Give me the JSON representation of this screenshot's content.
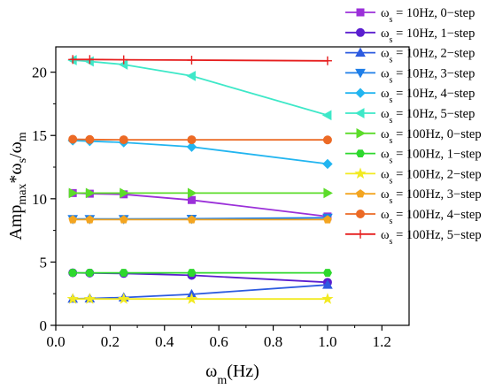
{
  "chart_data": {
    "type": "line",
    "title": "",
    "xlabel": {
      "base": "ω",
      "sub": "m",
      "tail": "(Hz)"
    },
    "ylabel": {
      "pre": "Amp",
      "sub1": "max",
      "mid": "*ω",
      "sub2": "s",
      "tail": "/ω",
      "sub3": "m"
    },
    "xlim": [
      0.0,
      1.3
    ],
    "ylim": [
      0,
      22
    ],
    "xticks": [
      0.0,
      0.2,
      0.4,
      0.6,
      0.8,
      1.0,
      1.2
    ],
    "xtick_labels": [
      "0.0",
      "0.2",
      "0.4",
      "0.6",
      "0.8",
      "1.0",
      "1.2"
    ],
    "yticks": [
      0,
      5,
      10,
      15,
      20
    ],
    "ytick_labels": [
      "0",
      "5",
      "10",
      "15",
      "20"
    ],
    "legend_position": "top-right",
    "x": [
      0.0625,
      0.125,
      0.25,
      0.5,
      1.0
    ],
    "series": [
      {
        "label_base": "ω",
        "label_sub": "s",
        "label_rest": " = 10Hz, 0−step",
        "color": "#9b30d9",
        "marker": "square",
        "values": [
          10.45,
          10.4,
          10.35,
          9.9,
          8.6
        ]
      },
      {
        "label_base": "ω",
        "label_sub": "s",
        "label_rest": " = 10Hz, 1−step",
        "color": "#5b1fcf",
        "marker": "circle",
        "values": [
          4.15,
          4.13,
          4.1,
          3.95,
          3.4
        ]
      },
      {
        "label_base": "ω",
        "label_sub": "s",
        "label_rest": " = 10Hz, 2−step",
        "color": "#2d5be0",
        "marker": "triangle-up",
        "values": [
          2.1,
          2.12,
          2.2,
          2.45,
          3.2
        ]
      },
      {
        "label_base": "ω",
        "label_sub": "s",
        "label_rest": " = 10Hz, 3−step",
        "color": "#1e7ee8",
        "marker": "triangle-down",
        "values": [
          8.4,
          8.4,
          8.4,
          8.42,
          8.5
        ]
      },
      {
        "label_base": "ω",
        "label_sub": "s",
        "label_rest": " = 10Hz, 4−step",
        "color": "#22b5f0",
        "marker": "diamond",
        "values": [
          14.6,
          14.55,
          14.45,
          14.1,
          12.75
        ]
      },
      {
        "label_base": "ω",
        "label_sub": "s",
        "label_rest": " = 10Hz, 5−step",
        "color": "#3ee8c8",
        "marker": "triangle-left",
        "values": [
          20.95,
          20.85,
          20.6,
          19.7,
          16.6
        ]
      },
      {
        "label_base": "ω",
        "label_sub": "s",
        "label_rest": " = 100Hz, 0−step",
        "color": "#5cdc2a",
        "marker": "triangle-right",
        "values": [
          10.45,
          10.45,
          10.45,
          10.45,
          10.45
        ]
      },
      {
        "label_base": "ω",
        "label_sub": "s",
        "label_rest": " = 100Hz, 1−step",
        "color": "#2ed82e",
        "marker": "hexagon",
        "values": [
          4.15,
          4.15,
          4.15,
          4.15,
          4.15
        ]
      },
      {
        "label_base": "ω",
        "label_sub": "s",
        "label_rest": " = 100Hz, 2−step",
        "color": "#f2ea22",
        "marker": "star",
        "values": [
          2.08,
          2.08,
          2.08,
          2.08,
          2.08
        ]
      },
      {
        "label_base": "ω",
        "label_sub": "s",
        "label_rest": " = 100Hz, 3−step",
        "color": "#f3a521",
        "marker": "pentagon",
        "values": [
          8.35,
          8.35,
          8.35,
          8.35,
          8.35
        ]
      },
      {
        "label_base": "ω",
        "label_sub": "s",
        "label_rest": " = 100Hz, 4−step",
        "color": "#ec6a25",
        "marker": "circle",
        "values": [
          14.7,
          14.68,
          14.66,
          14.66,
          14.65
        ]
      },
      {
        "label_base": "ω",
        "label_sub": "s",
        "label_rest": " = 100Hz, 5−step",
        "color": "#e61e1e",
        "marker": "plus",
        "values": [
          21.0,
          21.0,
          20.98,
          20.95,
          20.9
        ]
      }
    ]
  }
}
